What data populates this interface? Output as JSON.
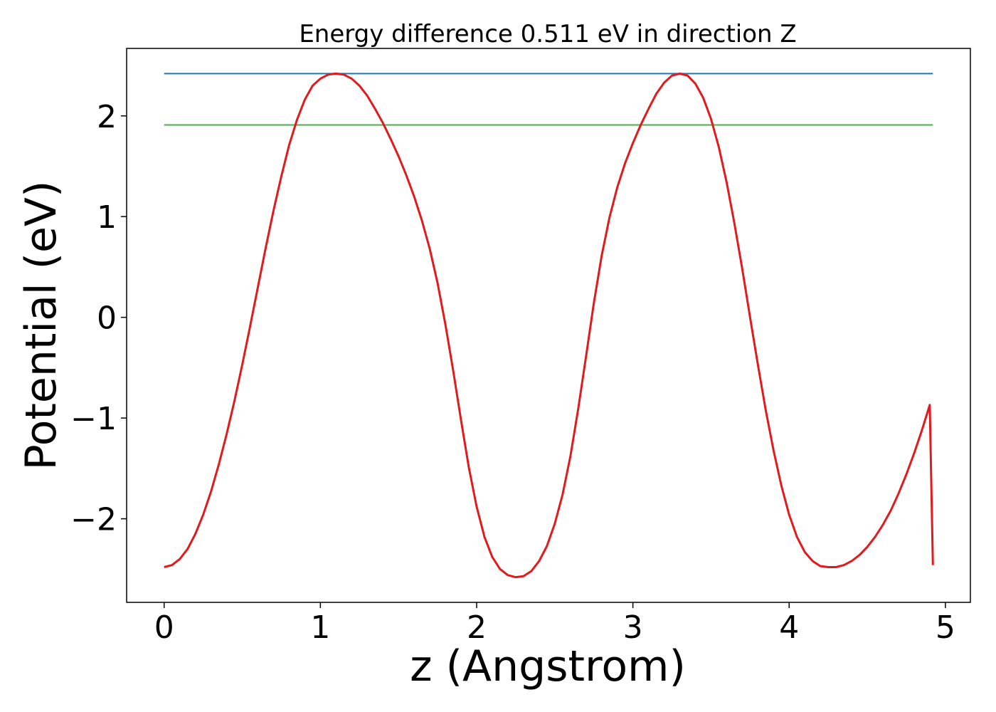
{
  "chart_data": {
    "type": "line",
    "title": "Energy difference 0.511 eV in direction Z",
    "xlabel": "z (Angstrom)",
    "ylabel": "Potential (eV)",
    "xlim": [
      -0.24,
      5.16
    ],
    "ylim": [
      -2.83,
      2.67
    ],
    "xticks": [
      0,
      1,
      2,
      3,
      4,
      5
    ],
    "xtick_labels": [
      "0",
      "1",
      "2",
      "3",
      "4",
      "5"
    ],
    "yticks": [
      -2,
      -1,
      0,
      1,
      2
    ],
    "ytick_labels": [
      "−2",
      "−1",
      "0",
      "1",
      "2"
    ],
    "grid": false,
    "colors": {
      "potential": "#e31a1c",
      "max_level": "#1f77b4",
      "min_level": "#4daf4a"
    },
    "series": [
      {
        "key": "potential",
        "x": [
          0.0,
          0.05,
          0.1,
          0.15,
          0.2,
          0.25,
          0.3,
          0.35,
          0.4,
          0.45,
          0.5,
          0.55,
          0.6,
          0.65,
          0.7,
          0.75,
          0.8,
          0.85,
          0.9,
          0.95,
          1.0,
          1.05,
          1.1,
          1.15,
          1.2,
          1.25,
          1.3,
          1.35,
          1.4,
          1.45,
          1.5,
          1.55,
          1.6,
          1.65,
          1.7,
          1.75,
          1.8,
          1.85,
          1.9,
          1.95,
          2.0,
          2.05,
          2.1,
          2.15,
          2.2,
          2.25,
          2.3,
          2.35,
          2.4,
          2.45,
          2.5,
          2.55,
          2.6,
          2.65,
          2.7,
          2.75,
          2.8,
          2.85,
          2.9,
          2.95,
          3.0,
          3.05,
          3.1,
          3.15,
          3.2,
          3.25,
          3.3,
          3.35,
          3.4,
          3.45,
          3.5,
          3.55,
          3.6,
          3.65,
          3.7,
          3.75,
          3.8,
          3.85,
          3.9,
          3.95,
          4.0,
          4.05,
          4.1,
          4.15,
          4.2,
          4.25,
          4.3,
          4.35,
          4.4,
          4.45,
          4.5,
          4.55,
          4.6,
          4.65,
          4.7,
          4.75,
          4.8,
          4.85,
          4.9,
          4.92
        ],
        "y": [
          -2.48,
          -2.46,
          -2.4,
          -2.3,
          -2.15,
          -1.96,
          -1.73,
          -1.46,
          -1.16,
          -0.83,
          -0.47,
          -0.09,
          0.3,
          0.69,
          1.06,
          1.4,
          1.71,
          1.96,
          2.16,
          2.3,
          2.37,
          2.41,
          2.42,
          2.41,
          2.37,
          2.3,
          2.2,
          2.07,
          1.93,
          1.77,
          1.6,
          1.41,
          1.2,
          0.96,
          0.68,
          0.34,
          -0.07,
          -0.53,
          -1.02,
          -1.49,
          -1.88,
          -2.18,
          -2.38,
          -2.5,
          -2.56,
          -2.58,
          -2.57,
          -2.52,
          -2.42,
          -2.27,
          -2.05,
          -1.76,
          -1.38,
          -0.91,
          -0.39,
          0.14,
          0.61,
          0.99,
          1.29,
          1.53,
          1.73,
          1.91,
          2.07,
          2.22,
          2.33,
          2.4,
          2.42,
          2.4,
          2.32,
          2.18,
          1.97,
          1.69,
          1.34,
          0.93,
          0.48,
          0.0,
          -0.47,
          -0.92,
          -1.32,
          -1.67,
          -1.96,
          -2.18,
          -2.33,
          -2.42,
          -2.47,
          -2.48,
          -2.48,
          -2.46,
          -2.42,
          -2.36,
          -2.28,
          -2.18,
          -2.06,
          -1.92,
          -1.75,
          -1.56,
          -1.35,
          -1.12,
          -0.87,
          -2.46
        ]
      },
      {
        "key": "max_level",
        "x": [
          0.0,
          4.92
        ],
        "y": [
          2.42,
          2.42
        ]
      },
      {
        "key": "min_level",
        "x": [
          0.0,
          4.92
        ],
        "y": [
          1.91,
          1.91
        ]
      }
    ]
  }
}
